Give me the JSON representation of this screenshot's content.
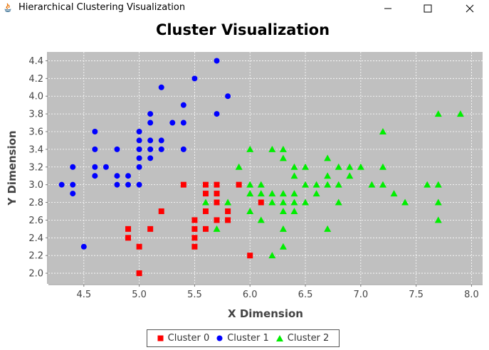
{
  "window": {
    "title": "Hierarchical Clustering Visualization",
    "buttons": {
      "minimize": "minimize-icon",
      "maximize": "maximize-icon",
      "close": "close-icon"
    }
  },
  "chart_data": {
    "type": "scatter",
    "title": "Cluster Visualization",
    "xlabel": "X Dimension",
    "ylabel": "Y Dimension",
    "xlim": [
      4.18,
      8.1
    ],
    "ylim": [
      1.88,
      4.5
    ],
    "xticks": [
      "4.5",
      "5.0",
      "5.5",
      "6.0",
      "6.5",
      "7.0",
      "7.5",
      "8.0"
    ],
    "yticks": [
      "2.0",
      "2.2",
      "2.4",
      "2.6",
      "2.8",
      "3.0",
      "3.2",
      "3.4",
      "3.6",
      "3.8",
      "4.0",
      "4.2",
      "4.4"
    ],
    "grid": true,
    "legend_position": "bottom-center",
    "series": [
      {
        "name": "Cluster 0",
        "color": "#ff0000",
        "marker": "square",
        "points": [
          [
            5.4,
            3.0
          ],
          [
            5.6,
            3.0
          ],
          [
            5.7,
            3.0
          ],
          [
            5.9,
            3.0
          ],
          [
            5.6,
            2.9
          ],
          [
            5.7,
            2.9
          ],
          [
            5.7,
            2.8
          ],
          [
            6.1,
            2.8
          ],
          [
            5.6,
            2.7
          ],
          [
            5.8,
            2.7
          ],
          [
            5.2,
            2.7
          ],
          [
            5.5,
            2.6
          ],
          [
            5.7,
            2.6
          ],
          [
            5.8,
            2.6
          ],
          [
            4.9,
            2.5
          ],
          [
            5.1,
            2.5
          ],
          [
            5.5,
            2.5
          ],
          [
            5.6,
            2.5
          ],
          [
            4.9,
            2.4
          ],
          [
            5.5,
            2.4
          ],
          [
            5.0,
            2.3
          ],
          [
            5.5,
            2.3
          ],
          [
            6.0,
            2.2
          ],
          [
            5.0,
            2.0
          ]
        ]
      },
      {
        "name": "Cluster 1",
        "color": "#0000ff",
        "marker": "circle",
        "points": [
          [
            5.7,
            4.4
          ],
          [
            5.5,
            4.2
          ],
          [
            5.2,
            4.1
          ],
          [
            5.8,
            4.0
          ],
          [
            5.4,
            3.9
          ],
          [
            5.1,
            3.8
          ],
          [
            5.7,
            3.8
          ],
          [
            5.1,
            3.7
          ],
          [
            5.3,
            3.7
          ],
          [
            5.4,
            3.7
          ],
          [
            4.6,
            3.6
          ],
          [
            5.0,
            3.6
          ],
          [
            5.0,
            3.5
          ],
          [
            5.1,
            3.5
          ],
          [
            5.2,
            3.5
          ],
          [
            4.6,
            3.4
          ],
          [
            4.8,
            3.4
          ],
          [
            5.0,
            3.4
          ],
          [
            5.1,
            3.4
          ],
          [
            5.2,
            3.4
          ],
          [
            5.4,
            3.4
          ],
          [
            5.0,
            3.3
          ],
          [
            5.1,
            3.3
          ],
          [
            4.4,
            3.2
          ],
          [
            4.6,
            3.2
          ],
          [
            4.7,
            3.2
          ],
          [
            5.0,
            3.2
          ],
          [
            4.6,
            3.1
          ],
          [
            4.8,
            3.1
          ],
          [
            4.9,
            3.1
          ],
          [
            4.3,
            3.0
          ],
          [
            4.4,
            3.0
          ],
          [
            4.8,
            3.0
          ],
          [
            4.9,
            3.0
          ],
          [
            5.0,
            3.0
          ],
          [
            4.4,
            2.9
          ],
          [
            4.5,
            2.3
          ]
        ]
      },
      {
        "name": "Cluster 2",
        "color": "#00ee00",
        "marker": "triangle",
        "points": [
          [
            7.7,
            3.8
          ],
          [
            7.9,
            3.8
          ],
          [
            7.2,
            3.6
          ],
          [
            6.0,
            3.4
          ],
          [
            6.2,
            3.4
          ],
          [
            6.3,
            3.4
          ],
          [
            6.3,
            3.3
          ],
          [
            6.7,
            3.3
          ],
          [
            5.9,
            3.2
          ],
          [
            6.4,
            3.2
          ],
          [
            6.5,
            3.2
          ],
          [
            6.8,
            3.2
          ],
          [
            6.9,
            3.2
          ],
          [
            7.0,
            3.2
          ],
          [
            7.2,
            3.2
          ],
          [
            6.4,
            3.1
          ],
          [
            6.7,
            3.1
          ],
          [
            6.9,
            3.1
          ],
          [
            6.0,
            3.0
          ],
          [
            6.1,
            3.0
          ],
          [
            6.5,
            3.0
          ],
          [
            6.6,
            3.0
          ],
          [
            6.7,
            3.0
          ],
          [
            6.8,
            3.0
          ],
          [
            7.1,
            3.0
          ],
          [
            7.2,
            3.0
          ],
          [
            7.6,
            3.0
          ],
          [
            7.7,
            3.0
          ],
          [
            6.0,
            2.9
          ],
          [
            6.1,
            2.9
          ],
          [
            6.2,
            2.9
          ],
          [
            6.3,
            2.9
          ],
          [
            6.4,
            2.9
          ],
          [
            6.6,
            2.9
          ],
          [
            7.3,
            2.9
          ],
          [
            5.6,
            2.8
          ],
          [
            5.8,
            2.8
          ],
          [
            6.2,
            2.8
          ],
          [
            6.3,
            2.8
          ],
          [
            6.4,
            2.8
          ],
          [
            6.5,
            2.8
          ],
          [
            6.8,
            2.8
          ],
          [
            7.4,
            2.8
          ],
          [
            7.7,
            2.8
          ],
          [
            6.0,
            2.7
          ],
          [
            6.3,
            2.7
          ],
          [
            6.4,
            2.7
          ],
          [
            6.1,
            2.6
          ],
          [
            7.7,
            2.6
          ],
          [
            5.7,
            2.5
          ],
          [
            6.3,
            2.5
          ],
          [
            6.7,
            2.5
          ],
          [
            6.3,
            2.3
          ],
          [
            6.2,
            2.2
          ]
        ]
      }
    ]
  }
}
